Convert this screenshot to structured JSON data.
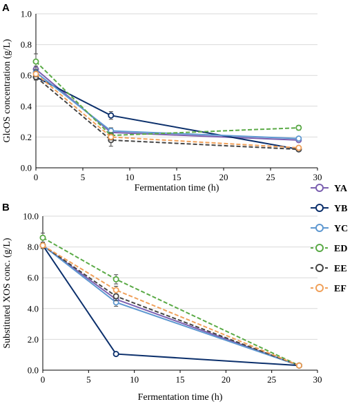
{
  "chart_data": [
    {
      "panel_label": "A",
      "type": "line",
      "xlabel": "Fermentation time (h)",
      "ylabel": "GlcOS concentration (g/L)",
      "xlim": [
        0,
        30
      ],
      "ylim": [
        0,
        1.0
      ],
      "x_ticks": [
        "0",
        "5",
        "10",
        "15",
        "20",
        "25",
        "30"
      ],
      "y_ticks": [
        "0.0",
        "0.2",
        "0.4",
        "0.6",
        "0.8",
        "1.0"
      ],
      "grid": "horizontal",
      "x": [
        0,
        8,
        28
      ],
      "series": [
        {
          "name": "YA",
          "values": [
            0.64,
            0.23,
            0.18
          ],
          "errors": [
            0.02,
            0.02,
            0.01
          ]
        },
        {
          "name": "YB",
          "values": [
            0.59,
            0.34,
            0.12
          ],
          "errors": [
            0.02,
            0.025,
            0.01
          ]
        },
        {
          "name": "YC",
          "values": [
            0.62,
            0.24,
            0.19
          ],
          "errors": [
            0.02,
            0.02,
            0.01
          ]
        },
        {
          "name": "ED",
          "values": [
            0.69,
            0.21,
            0.26
          ],
          "errors": [
            0.05,
            0.02,
            0.015
          ]
        },
        {
          "name": "EE",
          "values": [
            0.59,
            0.18,
            0.12
          ],
          "errors": [
            0.02,
            0.04,
            0.01
          ]
        },
        {
          "name": "EF",
          "values": [
            0.61,
            0.2,
            0.13
          ],
          "errors": [
            0.02,
            0.02,
            0.01
          ]
        }
      ]
    },
    {
      "panel_label": "B",
      "type": "line",
      "xlabel": "Fermentation time (h)",
      "ylabel": "Substituted XOS conc. (g/L)",
      "xlim": [
        0,
        30
      ],
      "ylim": [
        0,
        10.0
      ],
      "x_ticks": [
        "0",
        "5",
        "10",
        "15",
        "20",
        "25",
        "30"
      ],
      "y_ticks": [
        "0.0",
        "2.0",
        "4.0",
        "6.0",
        "8.0",
        "10.0"
      ],
      "grid": "horizontal",
      "x": [
        0,
        8,
        28
      ],
      "series": [
        {
          "name": "YA",
          "values": [
            8.1,
            4.6,
            0.3
          ],
          "errors": [
            0.2,
            0.2,
            0.1
          ]
        },
        {
          "name": "YB",
          "values": [
            8.1,
            1.05,
            0.3
          ],
          "errors": [
            0.2,
            0.05,
            0.05
          ]
        },
        {
          "name": "YC",
          "values": [
            8.1,
            4.4,
            0.3
          ],
          "errors": [
            0.2,
            0.25,
            0.1
          ]
        },
        {
          "name": "ED",
          "values": [
            8.6,
            5.9,
            0.3
          ],
          "errors": [
            0.3,
            0.3,
            0.1
          ]
        },
        {
          "name": "EE",
          "values": [
            8.1,
            4.8,
            0.3
          ],
          "errors": [
            0.2,
            0.3,
            0.1
          ]
        },
        {
          "name": "EF",
          "values": [
            8.1,
            5.2,
            0.3
          ],
          "errors": [
            0.2,
            0.25,
            0.1
          ]
        }
      ]
    }
  ],
  "legend": {
    "placement": "right, between panels",
    "entries": [
      {
        "name": "YA",
        "color": "#7b5fb0",
        "dash": "solid"
      },
      {
        "name": "YB",
        "color": "#0b2f6b",
        "dash": "solid"
      },
      {
        "name": "YC",
        "color": "#5e98d1",
        "dash": "solid"
      },
      {
        "name": "ED",
        "color": "#5aaa46",
        "dash": "dashed"
      },
      {
        "name": "EE",
        "color": "#454545",
        "dash": "dashed"
      },
      {
        "name": "EF",
        "color": "#f0a059",
        "dash": "dashed"
      }
    ]
  }
}
